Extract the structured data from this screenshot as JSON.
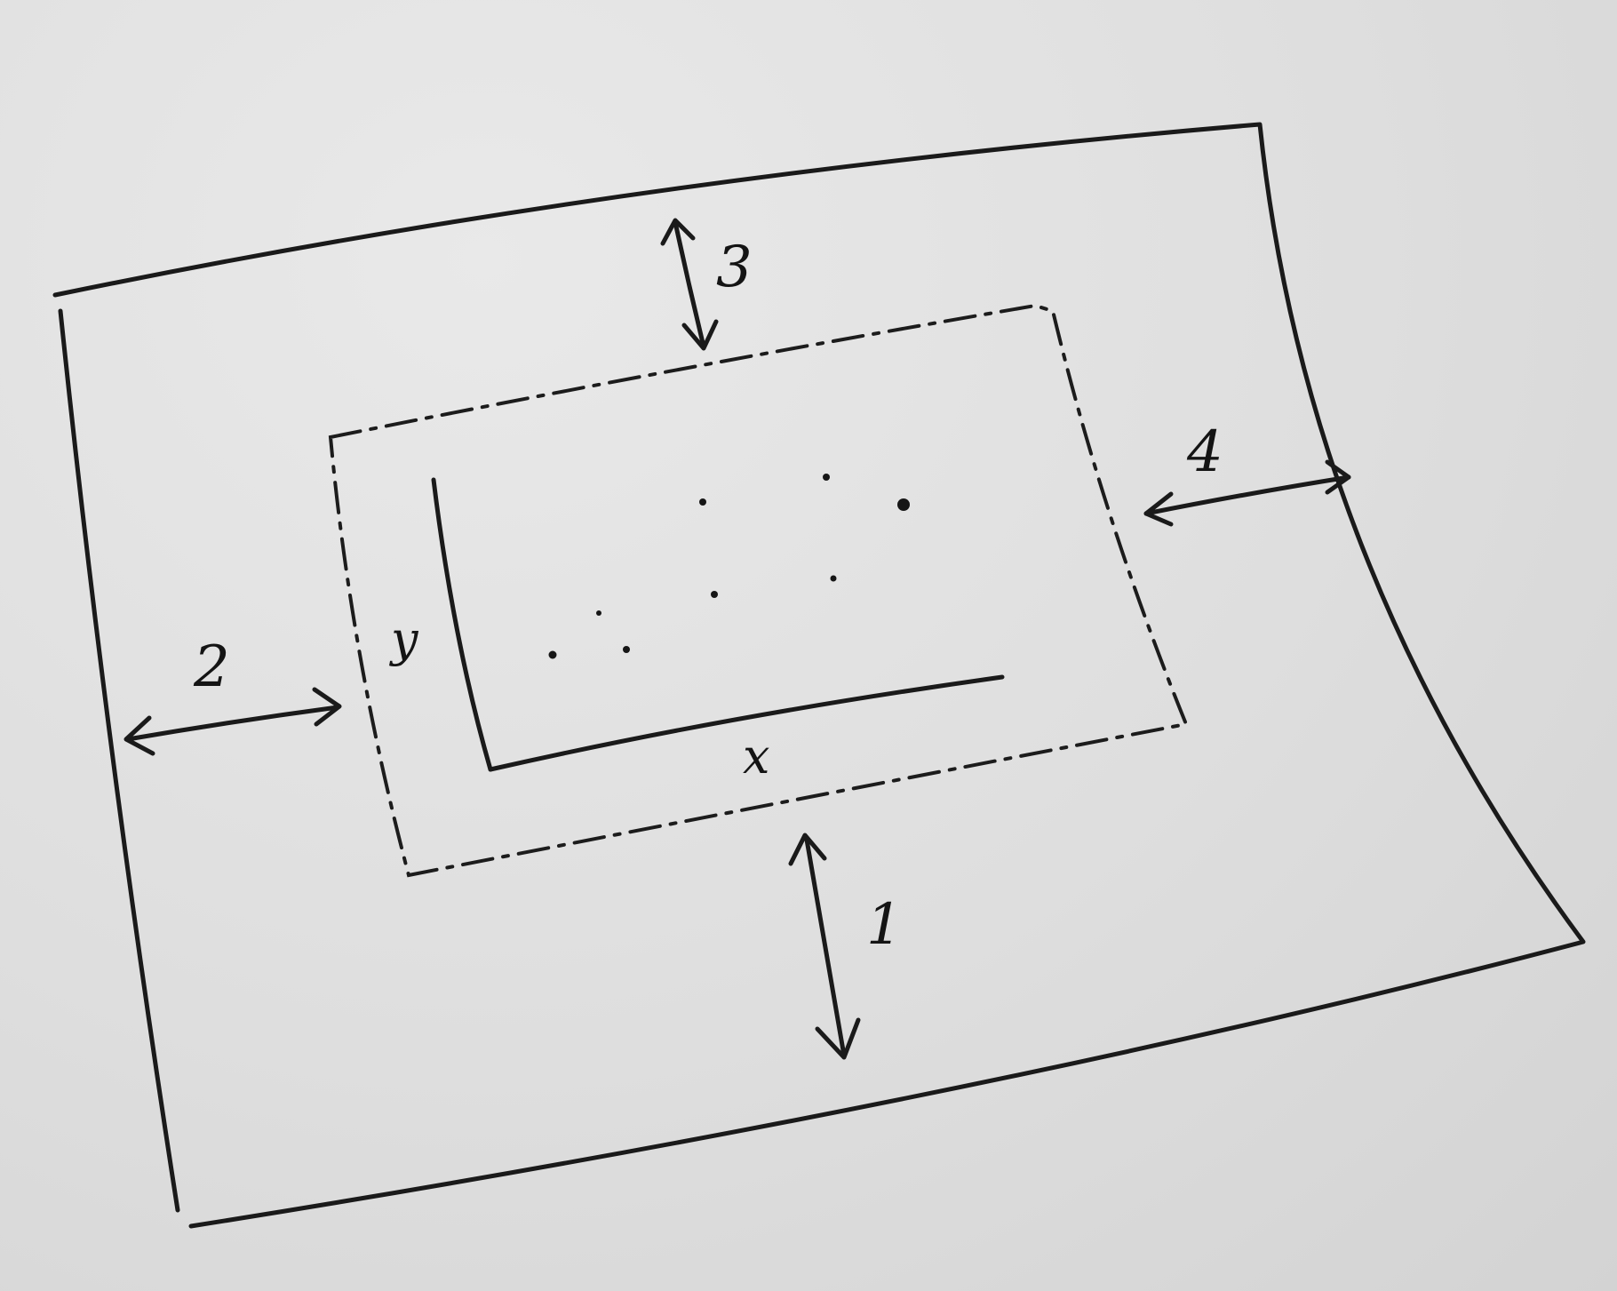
{
  "diagram": {
    "margin_labels": {
      "bottom": "1",
      "left": "2",
      "top": "3",
      "right": "4"
    },
    "axis_labels": {
      "x": "x",
      "y": "y"
    }
  },
  "colors": {
    "paper": "#dedede",
    "ink": "#1a1a1a"
  }
}
